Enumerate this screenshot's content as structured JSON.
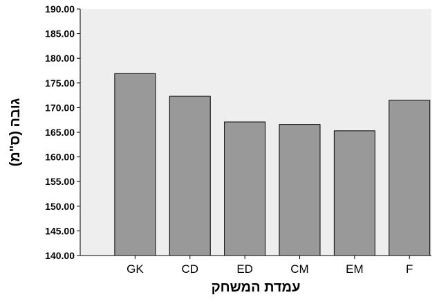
{
  "chart_data": {
    "type": "bar",
    "title": "",
    "xlabel": "עמדת המשחק",
    "ylabel": "גובה (ס\"מ)",
    "categories": [
      "GK",
      "CD",
      "ED",
      "CM",
      "EM",
      "F"
    ],
    "values": [
      176.9,
      172.3,
      167.1,
      166.6,
      165.3,
      171.5
    ],
    "ylim": [
      140,
      190
    ],
    "yticks": [
      "140.00",
      "145.00",
      "150.00",
      "155.00",
      "160.00",
      "165.00",
      "170.00",
      "175.00",
      "180.00",
      "185.00",
      "190.00"
    ],
    "grid": false,
    "legend": "none"
  },
  "colors": {
    "plot_background": "#eeeeee",
    "bar_fill": "#999999",
    "bar_stroke": "#000000",
    "axis": "#000000"
  }
}
